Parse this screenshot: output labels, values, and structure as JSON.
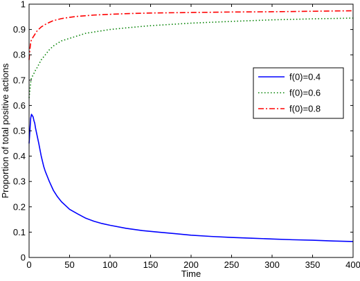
{
  "chart_data": {
    "type": "line",
    "title": "",
    "xlabel": "Time",
    "ylabel": "Proportion of total positive actions",
    "xlim": [
      0,
      400
    ],
    "ylim": [
      0,
      1
    ],
    "xticks": [
      0,
      50,
      100,
      150,
      200,
      250,
      300,
      350,
      400
    ],
    "yticks": [
      0,
      0.1,
      0.2,
      0.3,
      0.4,
      0.5,
      0.6,
      0.7,
      0.8,
      0.9,
      1
    ],
    "xtick_labels": [
      "0",
      "50",
      "100",
      "150",
      "200",
      "250",
      "300",
      "350",
      "400"
    ],
    "ytick_labels": [
      "0",
      "0.1",
      "0.2",
      "0.3",
      "0.4",
      "0.5",
      "0.6",
      "0.7",
      "0.8",
      "0.9",
      "1"
    ],
    "grid": false,
    "legend_position": "right-middle",
    "series": [
      {
        "name": "f(0)=0.4",
        "color": "#0000ff",
        "style": "solid",
        "x": [
          0,
          1,
          2,
          3,
          4,
          5,
          6,
          7,
          8,
          10,
          12,
          15,
          18,
          20,
          25,
          30,
          35,
          40,
          45,
          50,
          60,
          70,
          80,
          90,
          100,
          120,
          140,
          160,
          180,
          200,
          225,
          250,
          275,
          300,
          325,
          350,
          375,
          400
        ],
        "y": [
          0.45,
          0.5,
          0.55,
          0.565,
          0.56,
          0.555,
          0.54,
          0.53,
          0.51,
          0.48,
          0.45,
          0.4,
          0.36,
          0.34,
          0.3,
          0.265,
          0.24,
          0.22,
          0.205,
          0.19,
          0.172,
          0.155,
          0.143,
          0.134,
          0.127,
          0.115,
          0.106,
          0.1,
          0.094,
          0.088,
          0.083,
          0.079,
          0.076,
          0.073,
          0.07,
          0.068,
          0.065,
          0.063
        ]
      },
      {
        "name": "f(0)=0.6",
        "color": "#008000",
        "style": "dotted",
        "x": [
          0,
          1,
          2,
          3,
          5,
          8,
          10,
          15,
          20,
          25,
          30,
          40,
          50,
          60,
          70,
          80,
          100,
          125,
          150,
          175,
          200,
          250,
          300,
          350,
          400
        ],
        "y": [
          0.63,
          0.66,
          0.69,
          0.71,
          0.72,
          0.74,
          0.75,
          0.78,
          0.8,
          0.82,
          0.835,
          0.855,
          0.865,
          0.875,
          0.885,
          0.89,
          0.9,
          0.908,
          0.915,
          0.92,
          0.925,
          0.932,
          0.938,
          0.942,
          0.945
        ]
      },
      {
        "name": "f(0)=0.8",
        "color": "#ff0000",
        "style": "dashdot",
        "x": [
          0,
          1,
          2,
          3,
          5,
          8,
          10,
          15,
          20,
          25,
          30,
          40,
          50,
          60,
          80,
          100,
          125,
          150,
          200,
          250,
          300,
          350,
          400
        ],
        "y": [
          0.78,
          0.82,
          0.85,
          0.86,
          0.87,
          0.885,
          0.895,
          0.91,
          0.92,
          0.928,
          0.935,
          0.943,
          0.948,
          0.952,
          0.957,
          0.96,
          0.963,
          0.965,
          0.967,
          0.969,
          0.97,
          0.972,
          0.974
        ]
      }
    ]
  }
}
